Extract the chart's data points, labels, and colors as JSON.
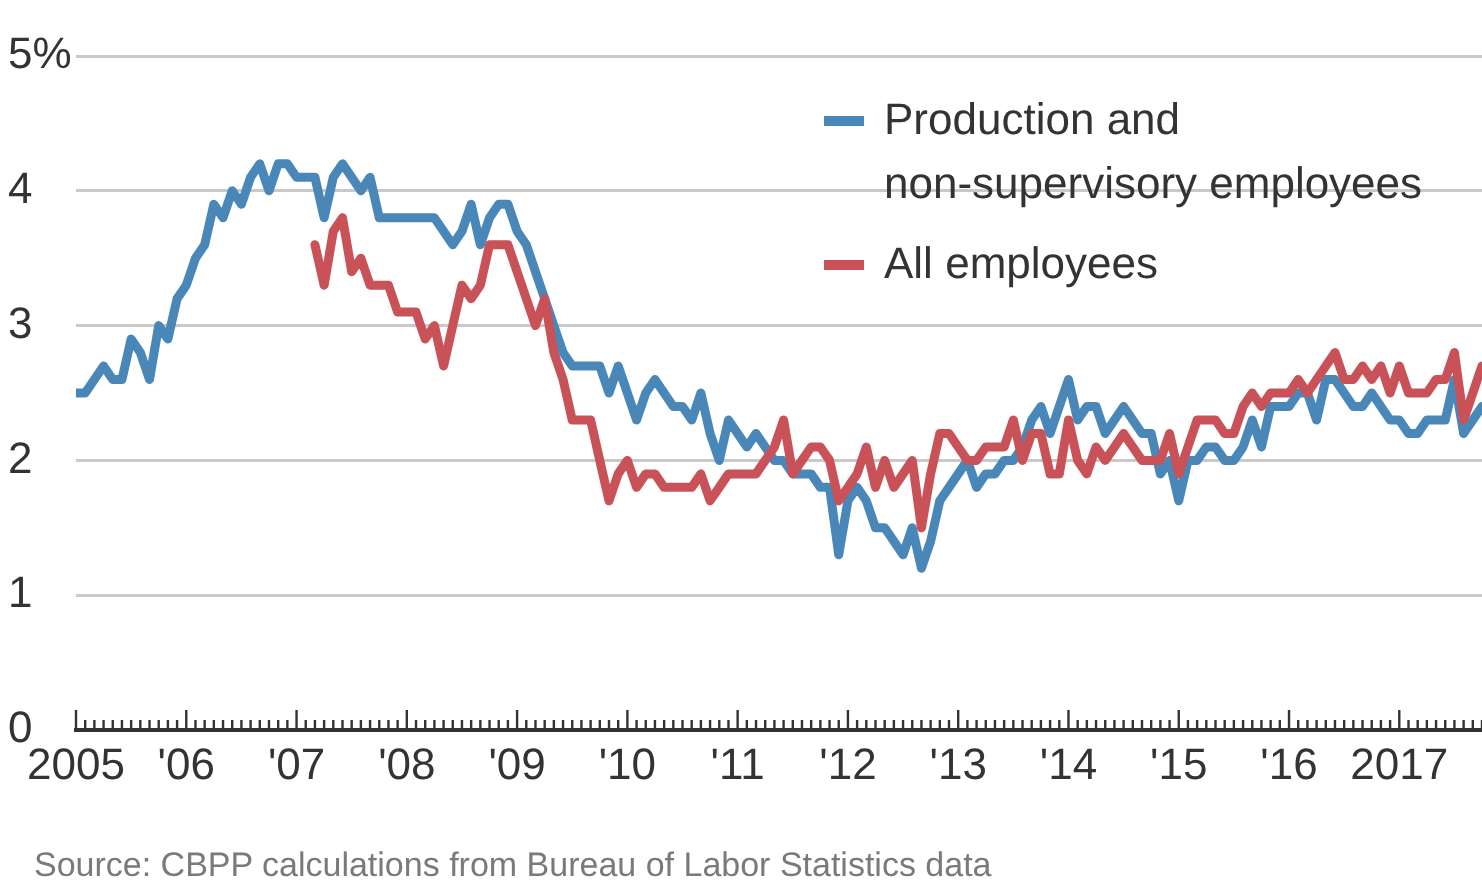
{
  "chart_data": {
    "type": "line",
    "x": [
      "2005-01",
      "2005-02",
      "2005-03",
      "2005-04",
      "2005-05",
      "2005-06",
      "2005-07",
      "2005-08",
      "2005-09",
      "2005-10",
      "2005-11",
      "2005-12",
      "2006-01",
      "2006-02",
      "2006-03",
      "2006-04",
      "2006-05",
      "2006-06",
      "2006-07",
      "2006-08",
      "2006-09",
      "2006-10",
      "2006-11",
      "2006-12",
      "2007-01",
      "2007-02",
      "2007-03",
      "2007-04",
      "2007-05",
      "2007-06",
      "2007-07",
      "2007-08",
      "2007-09",
      "2007-10",
      "2007-11",
      "2007-12",
      "2008-01",
      "2008-02",
      "2008-03",
      "2008-04",
      "2008-05",
      "2008-06",
      "2008-07",
      "2008-08",
      "2008-09",
      "2008-10",
      "2008-11",
      "2008-12",
      "2009-01",
      "2009-02",
      "2009-03",
      "2009-04",
      "2009-05",
      "2009-06",
      "2009-07",
      "2009-08",
      "2009-09",
      "2009-10",
      "2009-11",
      "2009-12",
      "2010-01",
      "2010-02",
      "2010-03",
      "2010-04",
      "2010-05",
      "2010-06",
      "2010-07",
      "2010-08",
      "2010-09",
      "2010-10",
      "2010-11",
      "2010-12",
      "2011-01",
      "2011-02",
      "2011-03",
      "2011-04",
      "2011-05",
      "2011-06",
      "2011-07",
      "2011-08",
      "2011-09",
      "2011-10",
      "2011-11",
      "2011-12",
      "2012-01",
      "2012-02",
      "2012-03",
      "2012-04",
      "2012-05",
      "2012-06",
      "2012-07",
      "2012-08",
      "2012-09",
      "2012-10",
      "2012-11",
      "2012-12",
      "2013-01",
      "2013-02",
      "2013-03",
      "2013-04",
      "2013-05",
      "2013-06",
      "2013-07",
      "2013-08",
      "2013-09",
      "2013-10",
      "2013-11",
      "2013-12",
      "2014-01",
      "2014-02",
      "2014-03",
      "2014-04",
      "2014-05",
      "2014-06",
      "2014-07",
      "2014-08",
      "2014-09",
      "2014-10",
      "2014-11",
      "2014-12",
      "2015-01",
      "2015-02",
      "2015-03",
      "2015-04",
      "2015-05",
      "2015-06",
      "2015-07",
      "2015-08",
      "2015-09",
      "2015-10",
      "2015-11",
      "2015-12",
      "2016-01",
      "2016-02",
      "2016-03",
      "2016-04",
      "2016-05",
      "2016-06",
      "2016-07",
      "2016-08",
      "2016-09",
      "2016-10",
      "2016-11",
      "2016-12",
      "2017-01",
      "2017-02",
      "2017-03",
      "2017-04",
      "2017-05",
      "2017-06",
      "2017-07",
      "2017-08",
      "2017-09",
      "2017-10"
    ],
    "series": [
      {
        "name": "Production and non-supervisory employees",
        "color": "#4a87b9",
        "values": [
          2.5,
          2.5,
          2.6,
          2.7,
          2.6,
          2.6,
          2.9,
          2.8,
          2.6,
          3.0,
          2.9,
          3.2,
          3.3,
          3.5,
          3.6,
          3.9,
          3.8,
          4.0,
          3.9,
          4.1,
          4.2,
          4.0,
          4.2,
          4.2,
          4.1,
          4.1,
          4.1,
          3.8,
          4.1,
          4.2,
          4.1,
          4.0,
          4.1,
          3.8,
          3.8,
          3.8,
          3.8,
          3.8,
          3.8,
          3.8,
          3.7,
          3.6,
          3.7,
          3.9,
          3.6,
          3.8,
          3.9,
          3.9,
          3.7,
          3.6,
          3.4,
          3.2,
          3.0,
          2.8,
          2.7,
          2.7,
          2.7,
          2.7,
          2.5,
          2.7,
          2.5,
          2.3,
          2.5,
          2.6,
          2.5,
          2.4,
          2.4,
          2.3,
          2.5,
          2.2,
          2.0,
          2.3,
          2.2,
          2.1,
          2.2,
          2.1,
          2.0,
          2.0,
          1.9,
          1.9,
          1.9,
          1.8,
          1.8,
          1.3,
          1.7,
          1.8,
          1.7,
          1.5,
          1.5,
          1.4,
          1.3,
          1.5,
          1.2,
          1.4,
          1.7,
          1.8,
          1.9,
          2.0,
          1.8,
          1.9,
          1.9,
          2.0,
          2.0,
          2.1,
          2.3,
          2.4,
          2.2,
          2.4,
          2.6,
          2.3,
          2.4,
          2.4,
          2.2,
          2.3,
          2.4,
          2.3,
          2.2,
          2.2,
          1.9,
          2.0,
          1.7,
          2.0,
          2.0,
          2.1,
          2.1,
          2.0,
          2.0,
          2.1,
          2.3,
          2.1,
          2.4,
          2.4,
          2.4,
          2.5,
          2.5,
          2.3,
          2.6,
          2.6,
          2.5,
          2.4,
          2.4,
          2.5,
          2.4,
          2.3,
          2.3,
          2.2,
          2.2,
          2.3,
          2.3,
          2.3,
          2.6,
          2.2,
          2.3,
          2.4
        ]
      },
      {
        "name": "All employees",
        "color": "#c85258",
        "values": [
          null,
          null,
          null,
          null,
          null,
          null,
          null,
          null,
          null,
          null,
          null,
          null,
          null,
          null,
          null,
          null,
          null,
          null,
          null,
          null,
          null,
          null,
          null,
          null,
          null,
          null,
          3.6,
          3.3,
          3.7,
          3.8,
          3.4,
          3.5,
          3.3,
          3.3,
          3.3,
          3.1,
          3.1,
          3.1,
          2.9,
          3.0,
          2.7,
          3.0,
          3.3,
          3.2,
          3.3,
          3.6,
          3.6,
          3.6,
          3.4,
          3.2,
          3.0,
          3.2,
          2.8,
          2.6,
          2.3,
          2.3,
          2.3,
          2.0,
          1.7,
          1.9,
          2.0,
          1.8,
          1.9,
          1.9,
          1.8,
          1.8,
          1.8,
          1.8,
          1.9,
          1.7,
          1.8,
          1.9,
          1.9,
          1.9,
          1.9,
          2.0,
          2.1,
          2.3,
          1.9,
          2.0,
          2.1,
          2.1,
          2.0,
          1.7,
          1.8,
          1.9,
          2.1,
          1.8,
          2.0,
          1.8,
          1.9,
          2.0,
          1.5,
          1.9,
          2.2,
          2.2,
          2.1,
          2.0,
          2.0,
          2.1,
          2.1,
          2.1,
          2.3,
          2.0,
          2.2,
          2.2,
          1.9,
          1.9,
          2.3,
          2.0,
          1.9,
          2.1,
          2.0,
          2.1,
          2.2,
          2.1,
          2.0,
          2.0,
          2.0,
          2.2,
          1.9,
          2.1,
          2.3,
          2.3,
          2.3,
          2.2,
          2.2,
          2.4,
          2.5,
          2.4,
          2.5,
          2.5,
          2.5,
          2.6,
          2.5,
          2.6,
          2.7,
          2.8,
          2.6,
          2.6,
          2.7,
          2.6,
          2.7,
          2.5,
          2.7,
          2.5,
          2.5,
          2.5,
          2.6,
          2.6,
          2.8,
          2.3,
          2.5,
          2.7
        ]
      }
    ],
    "xlim": [
      "2005-01",
      "2017-10"
    ],
    "xticks": [
      {
        "value": "2005-01",
        "label": "2005"
      },
      {
        "value": "2005-02",
        "label": null
      },
      {
        "value": "2005-03",
        "label": null
      },
      {
        "value": "2005-04",
        "label": null
      },
      {
        "value": "2005-05",
        "label": null
      },
      {
        "value": "2005-06",
        "label": null
      },
      {
        "value": "2005-07",
        "label": null
      },
      {
        "value": "2005-08",
        "label": null
      },
      {
        "value": "2005-09",
        "label": null
      },
      {
        "value": "2005-10",
        "label": null
      },
      {
        "value": "2005-11",
        "label": null
      },
      {
        "value": "2005-12",
        "label": null
      },
      {
        "value": "2006-01",
        "label": "'06"
      },
      {
        "value": "2006-02",
        "label": null
      },
      {
        "value": "2006-03",
        "label": null
      },
      {
        "value": "2006-04",
        "label": null
      },
      {
        "value": "2006-05",
        "label": null
      },
      {
        "value": "2006-06",
        "label": null
      },
      {
        "value": "2006-07",
        "label": null
      },
      {
        "value": "2006-08",
        "label": null
      },
      {
        "value": "2006-09",
        "label": null
      },
      {
        "value": "2006-10",
        "label": null
      },
      {
        "value": "2006-11",
        "label": null
      },
      {
        "value": "2006-12",
        "label": null
      },
      {
        "value": "2007-01",
        "label": "'07"
      },
      {
        "value": "2007-02",
        "label": null
      },
      {
        "value": "2007-03",
        "label": null
      },
      {
        "value": "2007-04",
        "label": null
      },
      {
        "value": "2007-05",
        "label": null
      },
      {
        "value": "2007-06",
        "label": null
      },
      {
        "value": "2007-07",
        "label": null
      },
      {
        "value": "2007-08",
        "label": null
      },
      {
        "value": "2007-09",
        "label": null
      },
      {
        "value": "2007-10",
        "label": null
      },
      {
        "value": "2007-11",
        "label": null
      },
      {
        "value": "2007-12",
        "label": null
      },
      {
        "value": "2008-01",
        "label": "'08"
      },
      {
        "value": "2008-02",
        "label": null
      },
      {
        "value": "2008-03",
        "label": null
      },
      {
        "value": "2008-04",
        "label": null
      },
      {
        "value": "2008-05",
        "label": null
      },
      {
        "value": "2008-06",
        "label": null
      },
      {
        "value": "2008-07",
        "label": null
      },
      {
        "value": "2008-08",
        "label": null
      },
      {
        "value": "2008-09",
        "label": null
      },
      {
        "value": "2008-10",
        "label": null
      },
      {
        "value": "2008-11",
        "label": null
      },
      {
        "value": "2008-12",
        "label": null
      },
      {
        "value": "2009-01",
        "label": "'09"
      },
      {
        "value": "2009-02",
        "label": null
      },
      {
        "value": "2009-03",
        "label": null
      },
      {
        "value": "2009-04",
        "label": null
      },
      {
        "value": "2009-05",
        "label": null
      },
      {
        "value": "2009-06",
        "label": null
      },
      {
        "value": "2009-07",
        "label": null
      },
      {
        "value": "2009-08",
        "label": null
      },
      {
        "value": "2009-09",
        "label": null
      },
      {
        "value": "2009-10",
        "label": null
      },
      {
        "value": "2009-11",
        "label": null
      },
      {
        "value": "2009-12",
        "label": null
      },
      {
        "value": "2010-01",
        "label": "'10"
      },
      {
        "value": "2010-02",
        "label": null
      },
      {
        "value": "2010-03",
        "label": null
      },
      {
        "value": "2010-04",
        "label": null
      },
      {
        "value": "2010-05",
        "label": null
      },
      {
        "value": "2010-06",
        "label": null
      },
      {
        "value": "2010-07",
        "label": null
      },
      {
        "value": "2010-08",
        "label": null
      },
      {
        "value": "2010-09",
        "label": null
      },
      {
        "value": "2010-10",
        "label": null
      },
      {
        "value": "2010-11",
        "label": null
      },
      {
        "value": "2010-12",
        "label": null
      },
      {
        "value": "2011-01",
        "label": "'11"
      },
      {
        "value": "2011-02",
        "label": null
      },
      {
        "value": "2011-03",
        "label": null
      },
      {
        "value": "2011-04",
        "label": null
      },
      {
        "value": "2011-05",
        "label": null
      },
      {
        "value": "2011-06",
        "label": null
      },
      {
        "value": "2011-07",
        "label": null
      },
      {
        "value": "2011-08",
        "label": null
      },
      {
        "value": "2011-09",
        "label": null
      },
      {
        "value": "2011-10",
        "label": null
      },
      {
        "value": "2011-11",
        "label": null
      },
      {
        "value": "2011-12",
        "label": null
      },
      {
        "value": "2012-01",
        "label": "'12"
      },
      {
        "value": "2012-02",
        "label": null
      },
      {
        "value": "2012-03",
        "label": null
      },
      {
        "value": "2012-04",
        "label": null
      },
      {
        "value": "2012-05",
        "label": null
      },
      {
        "value": "2012-06",
        "label": null
      },
      {
        "value": "2012-07",
        "label": null
      },
      {
        "value": "2012-08",
        "label": null
      },
      {
        "value": "2012-09",
        "label": null
      },
      {
        "value": "2012-10",
        "label": null
      },
      {
        "value": "2012-11",
        "label": null
      },
      {
        "value": "2012-12",
        "label": null
      },
      {
        "value": "2013-01",
        "label": "'13"
      },
      {
        "value": "2013-02",
        "label": null
      },
      {
        "value": "2013-03",
        "label": null
      },
      {
        "value": "2013-04",
        "label": null
      },
      {
        "value": "2013-05",
        "label": null
      },
      {
        "value": "2013-06",
        "label": null
      },
      {
        "value": "2013-07",
        "label": null
      },
      {
        "value": "2013-08",
        "label": null
      },
      {
        "value": "2013-09",
        "label": null
      },
      {
        "value": "2013-10",
        "label": null
      },
      {
        "value": "2013-11",
        "label": null
      },
      {
        "value": "2013-12",
        "label": null
      },
      {
        "value": "2014-01",
        "label": "'14"
      },
      {
        "value": "2014-02",
        "label": null
      },
      {
        "value": "2014-03",
        "label": null
      },
      {
        "value": "2014-04",
        "label": null
      },
      {
        "value": "2014-05",
        "label": null
      },
      {
        "value": "2014-06",
        "label": null
      },
      {
        "value": "2014-07",
        "label": null
      },
      {
        "value": "2014-08",
        "label": null
      },
      {
        "value": "2014-09",
        "label": null
      },
      {
        "value": "2014-10",
        "label": null
      },
      {
        "value": "2014-11",
        "label": null
      },
      {
        "value": "2014-12",
        "label": null
      },
      {
        "value": "2015-01",
        "label": "'15"
      },
      {
        "value": "2015-02",
        "label": null
      },
      {
        "value": "2015-03",
        "label": null
      },
      {
        "value": "2015-04",
        "label": null
      },
      {
        "value": "2015-05",
        "label": null
      },
      {
        "value": "2015-06",
        "label": null
      },
      {
        "value": "2015-07",
        "label": null
      },
      {
        "value": "2015-08",
        "label": null
      },
      {
        "value": "2015-09",
        "label": null
      },
      {
        "value": "2015-10",
        "label": null
      },
      {
        "value": "2015-11",
        "label": null
      },
      {
        "value": "2015-12",
        "label": null
      },
      {
        "value": "2016-01",
        "label": "'16"
      },
      {
        "value": "2016-02",
        "label": null
      },
      {
        "value": "2016-03",
        "label": null
      },
      {
        "value": "2016-04",
        "label": null
      },
      {
        "value": "2016-05",
        "label": null
      },
      {
        "value": "2016-06",
        "label": null
      },
      {
        "value": "2016-07",
        "label": null
      },
      {
        "value": "2016-08",
        "label": null
      },
      {
        "value": "2016-09",
        "label": null
      },
      {
        "value": "2016-10",
        "label": null
      },
      {
        "value": "2016-11",
        "label": null
      },
      {
        "value": "2016-12",
        "label": null
      },
      {
        "value": "2017-01",
        "label": "2017"
      },
      {
        "value": "2017-02",
        "label": null
      },
      {
        "value": "2017-03",
        "label": null
      },
      {
        "value": "2017-04",
        "label": null
      },
      {
        "value": "2017-05",
        "label": null
      },
      {
        "value": "2017-06",
        "label": null
      },
      {
        "value": "2017-07",
        "label": null
      },
      {
        "value": "2017-08",
        "label": null
      },
      {
        "value": "2017-09",
        "label": null
      },
      {
        "value": "2017-10",
        "label": null
      }
    ],
    "ylim": [
      0,
      5
    ],
    "yticks": [
      0,
      1,
      2,
      3,
      4,
      {
        "value": 5,
        "label": "5%"
      }
    ],
    "grid": "y",
    "legend": "top right",
    "marker": "none",
    "line_style": "solid",
    "annotations": [
      "Source: CBPP calculations from Bureau of Labor Statistics data"
    ]
  }
}
